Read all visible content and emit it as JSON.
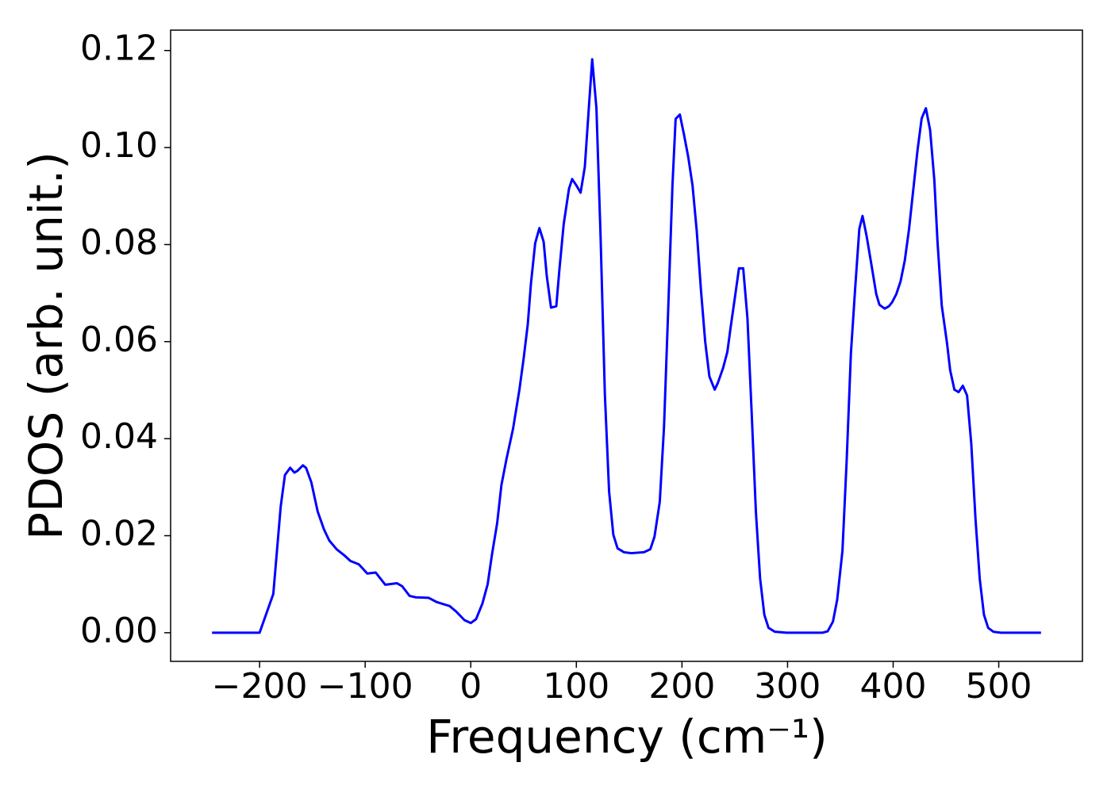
{
  "chart_data": {
    "type": "line",
    "xlabel": "Frequency (cm⁻¹)",
    "ylabel": "PDOS (arb. unit.)",
    "x": [
      -245,
      -200,
      -187,
      -180,
      -176,
      -171,
      -167,
      -164,
      -159,
      -156,
      -151,
      -145,
      -139,
      -134,
      -127,
      -120,
      -114,
      -106,
      -98,
      -90,
      -81,
      -70,
      -65,
      -58,
      -52,
      -40,
      -32,
      -20,
      -14,
      -6,
      0,
      5,
      11,
      16,
      20,
      25,
      29,
      34,
      40,
      46,
      50,
      54,
      57,
      61,
      65,
      69,
      72,
      76,
      81,
      84,
      88,
      93,
      96,
      100,
      104,
      108,
      112,
      115,
      119,
      123,
      127,
      131,
      135,
      139,
      145,
      152,
      164,
      170,
      174,
      179,
      183,
      187,
      191,
      194,
      198,
      202,
      206,
      210,
      214,
      218,
      222,
      226,
      231,
      234,
      239,
      243,
      246,
      250,
      254,
      258,
      262,
      266,
      270,
      274,
      278,
      282,
      288,
      299,
      333,
      338,
      343,
      347,
      352,
      356,
      360,
      364,
      368,
      371,
      375,
      380,
      384,
      387,
      392,
      396,
      399,
      403,
      407,
      411,
      415,
      419,
      423,
      427,
      431,
      435,
      439,
      442,
      446,
      451,
      454,
      458,
      462,
      466,
      470,
      474,
      478,
      482,
      486,
      490,
      495,
      502,
      540
    ],
    "series": [
      {
        "name": "PDOS",
        "color": "#0000ff",
        "values": [
          0,
          0,
          0.008,
          0.026,
          0.0325,
          0.034,
          0.033,
          0.0334,
          0.0345,
          0.034,
          0.031,
          0.025,
          0.0213,
          0.019,
          0.0172,
          0.016,
          0.0148,
          0.0141,
          0.0122,
          0.0124,
          0.0099,
          0.0102,
          0.0096,
          0.0076,
          0.0073,
          0.0072,
          0.0063,
          0.0055,
          0.0044,
          0.0026,
          0.002,
          0.0028,
          0.006,
          0.01,
          0.016,
          0.0226,
          0.0304,
          0.036,
          0.042,
          0.05,
          0.0564,
          0.0636,
          0.072,
          0.0803,
          0.0834,
          0.0806,
          0.0735,
          0.067,
          0.0673,
          0.075,
          0.0842,
          0.0915,
          0.0935,
          0.0922,
          0.0907,
          0.096,
          0.1088,
          0.1182,
          0.1081,
          0.0811,
          0.0491,
          0.0291,
          0.0202,
          0.0174,
          0.0166,
          0.0164,
          0.0166,
          0.0172,
          0.0198,
          0.027,
          0.0424,
          0.0668,
          0.0922,
          0.1059,
          0.1068,
          0.1026,
          0.098,
          0.0922,
          0.0828,
          0.0706,
          0.06,
          0.0528,
          0.0501,
          0.0515,
          0.0546,
          0.0579,
          0.0628,
          0.0689,
          0.0751,
          0.0751,
          0.0649,
          0.0454,
          0.025,
          0.0112,
          0.0037,
          0.001,
          0.0002,
          0,
          0,
          0.0003,
          0.0023,
          0.0068,
          0.0169,
          0.0356,
          0.0576,
          0.0709,
          0.0833,
          0.0859,
          0.0816,
          0.0751,
          0.0698,
          0.0676,
          0.0668,
          0.0673,
          0.0681,
          0.0698,
          0.0724,
          0.0767,
          0.0831,
          0.0912,
          0.0993,
          0.106,
          0.1081,
          0.1036,
          0.0933,
          0.0806,
          0.0675,
          0.0597,
          0.0541,
          0.0501,
          0.0496,
          0.0509,
          0.0489,
          0.0389,
          0.0234,
          0.0111,
          0.0037,
          0.001,
          0.0002,
          0,
          0
        ]
      }
    ],
    "xlim": [
      -284.25,
      579.25
    ],
    "ylim": [
      -0.0059,
      0.1242
    ],
    "xticks": [
      {
        "value": -200,
        "label": "−200"
      },
      {
        "value": -100,
        "label": "−100"
      },
      0,
      100,
      200,
      300,
      400,
      500
    ],
    "yticks": [
      {
        "value": 0,
        "label": "0.00"
      },
      {
        "value": 0.02,
        "label": "0.02"
      },
      {
        "value": 0.04,
        "label": "0.04"
      },
      {
        "value": 0.06,
        "label": "0.06"
      },
      {
        "value": 0.08,
        "label": "0.08"
      },
      {
        "value": 0.1,
        "label": "0.10"
      },
      {
        "value": 0.12,
        "label": "0.12"
      }
    ]
  }
}
